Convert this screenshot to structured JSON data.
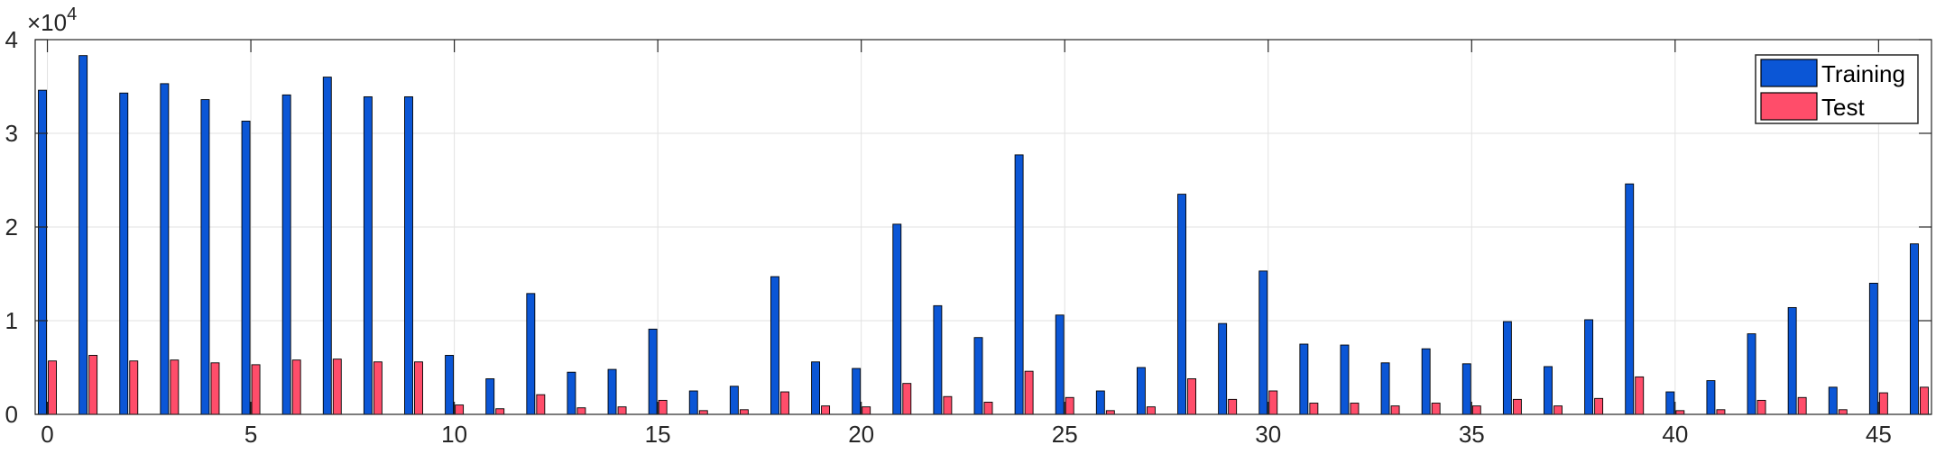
{
  "chart_data": {
    "type": "bar",
    "title": "",
    "xlabel": "",
    "ylabel": "",
    "y_exponent_label": "×10",
    "y_exponent_power": "4",
    "y_multiplier": 10000,
    "x": [
      0,
      1,
      2,
      3,
      4,
      5,
      6,
      7,
      8,
      9,
      10,
      11,
      12,
      13,
      14,
      15,
      16,
      17,
      18,
      19,
      20,
      21,
      22,
      23,
      24,
      25,
      26,
      27,
      28,
      29,
      30,
      31,
      32,
      33,
      34,
      35,
      36,
      37,
      38,
      39,
      40,
      41,
      42,
      43,
      44,
      45,
      46
    ],
    "xlim": [
      -0.3,
      46.3
    ],
    "ylim": [
      0,
      40000
    ],
    "xticks": [
      0,
      5,
      10,
      15,
      20,
      25,
      30,
      35,
      40,
      45
    ],
    "yticks": [
      0,
      10000,
      20000,
      30000,
      40000
    ],
    "ytick_labels": [
      "0",
      "1",
      "2",
      "3",
      "4"
    ],
    "xtick_labels": [
      "0",
      "5",
      "10",
      "15",
      "20",
      "25",
      "30",
      "35",
      "40",
      "45"
    ],
    "grid": true,
    "legend_position": "top-right",
    "series": [
      {
        "name": "Training",
        "color": "#0b56d6",
        "values": [
          34600,
          38300,
          34300,
          35300,
          33600,
          31300,
          34100,
          36000,
          33900,
          33900,
          6300,
          3800,
          12900,
          4500,
          4800,
          9100,
          2500,
          3000,
          14700,
          5600,
          4900,
          20300,
          11600,
          8200,
          27700,
          10600,
          2500,
          5000,
          23500,
          9700,
          15300,
          7500,
          7400,
          5500,
          7000,
          5400,
          9900,
          5100,
          10100,
          24600,
          2400,
          3600,
          8600,
          11400,
          2900,
          14000,
          18200
        ]
      },
      {
        "name": "Test",
        "color": "#ff4d6a",
        "values": [
          5700,
          6300,
          5700,
          5800,
          5500,
          5300,
          5800,
          5900,
          5600,
          5600,
          1000,
          600,
          2100,
          700,
          800,
          1500,
          400,
          500,
          2400,
          900,
          800,
          3300,
          1900,
          1300,
          4600,
          1800,
          400,
          800,
          3800,
          1600,
          2500,
          1200,
          1200,
          900,
          1200,
          900,
          1600,
          900,
          1700,
          4000,
          400,
          500,
          1500,
          1800,
          500,
          2300,
          2900
        ]
      }
    ]
  }
}
